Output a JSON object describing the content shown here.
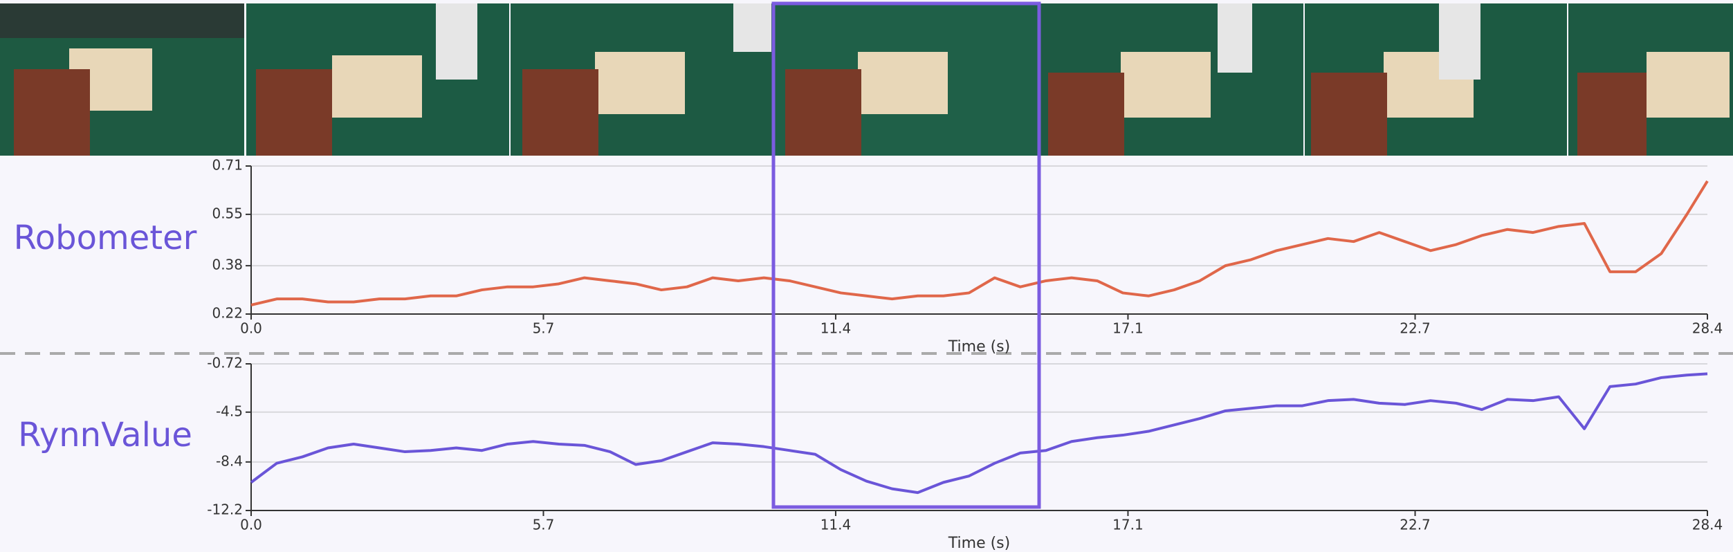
{
  "chart_data": [
    {
      "type": "line",
      "ylabel": "Robometer",
      "xlabel": "Time (s)",
      "color": "#e0674a",
      "grid": true,
      "x": [
        0,
        0.5,
        1,
        1.5,
        2,
        2.5,
        3,
        3.5,
        4,
        4.5,
        5,
        5.5,
        6,
        6.5,
        7,
        7.5,
        8,
        8.5,
        9,
        9.5,
        10,
        10.5,
        11,
        11.5,
        12,
        12.5,
        13,
        13.5,
        14,
        14.5,
        15,
        15.5,
        16,
        16.5,
        17,
        17.5,
        18,
        18.5,
        19,
        19.5,
        20,
        20.5,
        21,
        21.5,
        22,
        22.5,
        23,
        23.5,
        24,
        24.5,
        25,
        25.5,
        26,
        26.5,
        27,
        27.5,
        28,
        28.4
      ],
      "values": [
        0.25,
        0.27,
        0.27,
        0.26,
        0.26,
        0.27,
        0.27,
        0.28,
        0.28,
        0.3,
        0.31,
        0.31,
        0.32,
        0.34,
        0.33,
        0.32,
        0.3,
        0.31,
        0.34,
        0.33,
        0.34,
        0.33,
        0.31,
        0.29,
        0.28,
        0.27,
        0.28,
        0.28,
        0.29,
        0.34,
        0.31,
        0.33,
        0.34,
        0.33,
        0.29,
        0.28,
        0.3,
        0.33,
        0.38,
        0.4,
        0.43,
        0.45,
        0.47,
        0.46,
        0.49,
        0.46,
        0.43,
        0.45,
        0.48,
        0.5,
        0.49,
        0.51,
        0.52,
        0.36,
        0.36,
        0.42,
        0.55,
        0.66
      ],
      "xlim": [
        0,
        28.4
      ],
      "xticks": [
        {
          "value": 0,
          "label": "0.0"
        },
        5.7,
        11.4,
        17.1,
        22.7,
        28.4
      ],
      "ylim": [
        0.22,
        0.71
      ],
      "yticks": [
        0.22,
        0.38,
        0.55,
        0.71
      ]
    },
    {
      "type": "line",
      "ylabel": "RynnValue",
      "xlabel": "Time (s)",
      "color": "#6a55d8",
      "grid": true,
      "x": [
        0,
        0.5,
        1,
        1.5,
        2,
        2.5,
        3,
        3.5,
        4,
        4.5,
        5,
        5.5,
        6,
        6.5,
        7,
        7.5,
        8,
        8.5,
        9,
        9.5,
        10,
        10.5,
        11,
        11.5,
        12,
        12.5,
        13,
        13.5,
        14,
        14.5,
        15,
        15.5,
        16,
        16.5,
        17,
        17.5,
        18,
        18.5,
        19,
        19.5,
        20,
        20.5,
        21,
        21.5,
        22,
        22.5,
        23,
        23.5,
        24,
        24.5,
        25,
        25.5,
        26,
        26.5,
        27,
        27.5,
        28,
        28.4
      ],
      "values": [
        -10.0,
        -8.5,
        -8.0,
        -7.3,
        -7.0,
        -7.3,
        -7.6,
        -7.5,
        -7.3,
        -7.5,
        -7.0,
        -6.8,
        -7.0,
        -7.1,
        -7.6,
        -8.6,
        -8.3,
        -7.6,
        -6.9,
        -7.0,
        -7.2,
        -7.5,
        -7.8,
        -9.0,
        -9.9,
        -10.5,
        -10.8,
        -10.0,
        -9.5,
        -8.5,
        -7.7,
        -7.5,
        -6.8,
        -6.5,
        -6.3,
        -6.0,
        -5.5,
        -5.0,
        -4.4,
        -4.2,
        -4.0,
        -4.0,
        -3.6,
        -3.5,
        -3.8,
        -3.9,
        -3.6,
        -3.8,
        -4.3,
        -3.5,
        -3.6,
        -3.3,
        -5.8,
        -2.5,
        -2.3,
        -1.8,
        -1.6,
        -1.5
      ],
      "xlim": [
        0,
        28.4
      ],
      "xticks": [
        {
          "value": 0,
          "label": "0.0"
        },
        5.7,
        11.4,
        17.1,
        22.7,
        28.4
      ],
      "ylim": [
        -12.2,
        -0.72
      ],
      "yticks": [
        -12.2,
        -8.4,
        -4.5,
        -0.72
      ]
    }
  ]
}
